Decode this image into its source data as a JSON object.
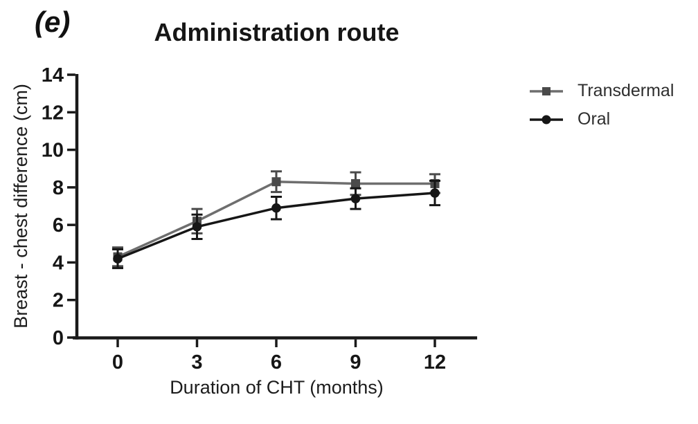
{
  "figure": {
    "panel_label": "(e)",
    "background": "#ffffff"
  },
  "chart_data": {
    "type": "line",
    "title": "Administration route",
    "xlabel": "Duration of CHT (months)",
    "ylabel": "Breast - chest difference (cm)",
    "x": [
      0,
      3,
      6,
      9,
      12
    ],
    "xticks": [
      0,
      3,
      6,
      9,
      12
    ],
    "yticks": [
      0,
      2,
      4,
      6,
      8,
      10,
      12,
      14
    ],
    "xlim": [
      -1.7,
      13.6
    ],
    "ylim": [
      0,
      14
    ],
    "grid": false,
    "error_bars": true,
    "legend_position": "right",
    "axis_color": "#1a1a1a",
    "series": [
      {
        "name": "Transdermal",
        "marker": "square",
        "line_color": "#6e6e6e",
        "marker_color": "#4a4a4a",
        "values": [
          4.3,
          6.2,
          8.3,
          8.2,
          8.2
        ],
        "errors": [
          0.5,
          0.65,
          0.55,
          0.6,
          0.5
        ]
      },
      {
        "name": "Oral",
        "marker": "circle",
        "line_color": "#161616",
        "marker_color": "#161616",
        "values": [
          4.2,
          5.9,
          6.9,
          7.4,
          7.7
        ],
        "errors": [
          0.5,
          0.65,
          0.6,
          0.55,
          0.65
        ]
      }
    ]
  }
}
